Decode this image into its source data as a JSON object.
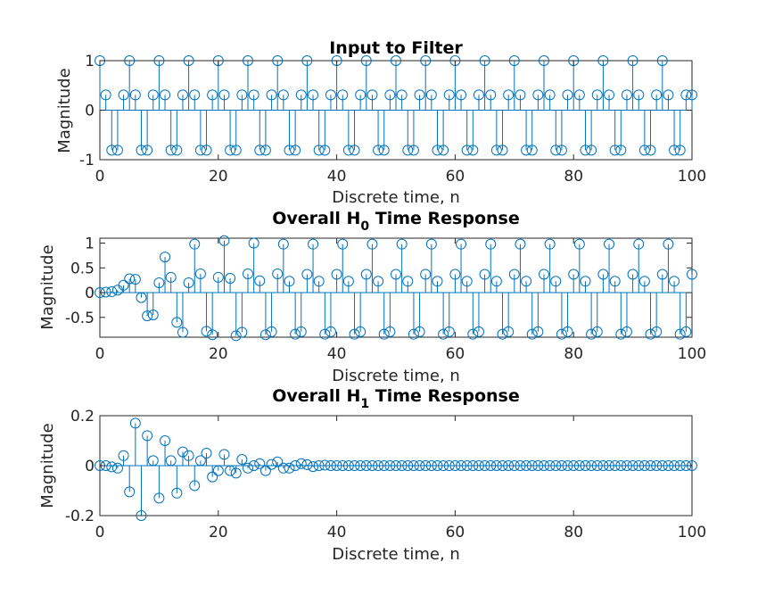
{
  "colors": {
    "stem": "#0072BD",
    "axis": "#262626",
    "background": "#ffffff"
  },
  "chart_data": [
    {
      "type": "stem",
      "title": "Input to Filter",
      "xlabel": "Discrete time, n",
      "ylabel": "Magnitude",
      "xlim": [
        0,
        100
      ],
      "ylim": [
        -1,
        1
      ],
      "xticks": [
        0,
        20,
        40,
        60,
        80,
        100
      ],
      "yticks": [
        -1,
        0,
        1
      ],
      "ytick_labels": [
        "-1",
        "0",
        "1"
      ],
      "grid": false,
      "x": [
        0,
        1,
        2,
        3,
        4,
        5,
        6,
        7,
        8,
        9,
        10,
        11,
        12,
        13,
        14,
        15,
        16,
        17,
        18,
        19,
        20,
        21,
        22,
        23,
        24,
        25,
        26,
        27,
        28,
        29,
        30,
        31,
        32,
        33,
        34,
        35,
        36,
        37,
        38,
        39,
        40,
        41,
        42,
        43,
        44,
        45,
        46,
        47,
        48,
        49,
        50,
        51,
        52,
        53,
        54,
        55,
        56,
        57,
        58,
        59,
        60,
        61,
        62,
        63,
        64,
        65,
        66,
        67,
        68,
        69,
        70,
        71,
        72,
        73,
        74,
        75,
        76,
        77,
        78,
        79,
        80,
        81,
        82,
        83,
        84,
        85,
        86,
        87,
        88,
        89,
        90,
        91,
        92,
        93,
        94,
        95,
        96,
        97,
        98,
        99,
        100
      ],
      "values": [
        1,
        0.309,
        -0.809,
        -0.809,
        0.309,
        1,
        0.309,
        -0.809,
        -0.809,
        0.309,
        1,
        0.309,
        -0.809,
        -0.809,
        0.309,
        1,
        0.309,
        -0.809,
        -0.809,
        0.309,
        1,
        0.309,
        -0.809,
        -0.809,
        0.309,
        1,
        0.309,
        -0.809,
        -0.809,
        0.309,
        1,
        0.309,
        -0.809,
        -0.809,
        0.309,
        1,
        0.309,
        -0.809,
        -0.809,
        0.309,
        1,
        0.309,
        -0.809,
        -0.809,
        0.309,
        1,
        0.309,
        -0.809,
        -0.809,
        0.309,
        1,
        0.309,
        -0.809,
        -0.809,
        0.309,
        1,
        0.309,
        -0.809,
        -0.809,
        0.309,
        1,
        0.309,
        -0.809,
        -0.809,
        0.309,
        1,
        0.309,
        -0.809,
        -0.809,
        0.309,
        1,
        0.309,
        -0.809,
        -0.809,
        0.309,
        1,
        0.309,
        -0.809,
        -0.809,
        0.309,
        1,
        0.309,
        -0.809,
        -0.809,
        0.309,
        1,
        0.309,
        -0.809,
        -0.809,
        0.309,
        1,
        0.309,
        -0.809,
        -0.809,
        0.309,
        1,
        0.309,
        -0.809,
        -0.809,
        0.309,
        0.309
      ]
    },
    {
      "type": "stem",
      "title": "Overall H",
      "title_subscript": "0",
      "title_suffix": " Time Response",
      "xlabel": "Discrete time, n",
      "ylabel": "Magnitude",
      "xlim": [
        0,
        100
      ],
      "ylim": [
        -0.9,
        1.1
      ],
      "xticks": [
        0,
        20,
        40,
        60,
        80,
        100
      ],
      "yticks": [
        -0.5,
        0,
        0.5,
        1
      ],
      "ytick_labels": [
        "-0.5",
        "0",
        "0.5",
        "1"
      ],
      "grid": false,
      "x": [
        0,
        1,
        2,
        3,
        4,
        5,
        6,
        7,
        8,
        9,
        10,
        11,
        12,
        13,
        14,
        15,
        16,
        17,
        18,
        19,
        20,
        21,
        22,
        23,
        24,
        25,
        26,
        27,
        28,
        29,
        30,
        31,
        32,
        33,
        34,
        35,
        36,
        37,
        38,
        39,
        40,
        41,
        42,
        43,
        44,
        45,
        46,
        47,
        48,
        49,
        50,
        51,
        52,
        53,
        54,
        55,
        56,
        57,
        58,
        59,
        60,
        61,
        62,
        63,
        64,
        65,
        66,
        67,
        68,
        69,
        70,
        71,
        72,
        73,
        74,
        75,
        76,
        77,
        78,
        79,
        80,
        81,
        82,
        83,
        84,
        85,
        86,
        87,
        88,
        89,
        90,
        91,
        92,
        93,
        94,
        95,
        96,
        97,
        98,
        99,
        100
      ],
      "values": [
        0.0,
        0.01,
        0.02,
        0.05,
        0.15,
        0.28,
        0.27,
        -0.1,
        -0.47,
        -0.45,
        0.2,
        0.72,
        0.31,
        -0.6,
        -0.8,
        0.2,
        0.98,
        0.38,
        -0.78,
        -0.85,
        0.31,
        1.05,
        0.29,
        -0.87,
        -0.8,
        0.38,
        1.0,
        0.24,
        -0.85,
        -0.79,
        0.38,
        0.98,
        0.23,
        -0.84,
        -0.79,
        0.37,
        0.98,
        0.23,
        -0.84,
        -0.79,
        0.37,
        0.98,
        0.23,
        -0.84,
        -0.79,
        0.37,
        0.98,
        0.23,
        -0.84,
        -0.79,
        0.37,
        0.98,
        0.23,
        -0.84,
        -0.79,
        0.37,
        0.98,
        0.23,
        -0.84,
        -0.79,
        0.37,
        0.98,
        0.23,
        -0.84,
        -0.79,
        0.37,
        0.98,
        0.23,
        -0.84,
        -0.79,
        0.37,
        0.98,
        0.23,
        -0.84,
        -0.79,
        0.37,
        0.98,
        0.23,
        -0.84,
        -0.79,
        0.37,
        0.98,
        0.23,
        -0.84,
        -0.79,
        0.37,
        0.98,
        0.23,
        -0.84,
        -0.79,
        0.37,
        0.98,
        0.23,
        -0.84,
        -0.79,
        0.37,
        0.98,
        0.23,
        -0.84,
        -0.79,
        0.37
      ]
    },
    {
      "type": "stem",
      "title": "Overall H",
      "title_subscript": "1",
      "title_suffix": " Time Response",
      "xlabel": "Discrete time, n",
      "ylabel": "Magnitude",
      "xlim": [
        0,
        100
      ],
      "ylim": [
        -0.2,
        0.2
      ],
      "xticks": [
        0,
        20,
        40,
        60,
        80,
        100
      ],
      "yticks": [
        -0.2,
        0,
        0.2
      ],
      "ytick_labels": [
        "-0.2",
        "0",
        "0.2"
      ],
      "grid": false,
      "x": [
        0,
        1,
        2,
        3,
        4,
        5,
        6,
        7,
        8,
        9,
        10,
        11,
        12,
        13,
        14,
        15,
        16,
        17,
        18,
        19,
        20,
        21,
        22,
        23,
        24,
        25,
        26,
        27,
        28,
        29,
        30,
        31,
        32,
        33,
        34,
        35,
        36,
        37,
        38,
        39,
        40,
        41,
        42,
        43,
        44,
        45,
        46,
        47,
        48,
        49,
        50,
        51,
        52,
        53,
        54,
        55,
        56,
        57,
        58,
        59,
        60,
        61,
        62,
        63,
        64,
        65,
        66,
        67,
        68,
        69,
        70,
        71,
        72,
        73,
        74,
        75,
        76,
        77,
        78,
        79,
        80,
        81,
        82,
        83,
        84,
        85,
        86,
        87,
        88,
        89,
        90,
        91,
        92,
        93,
        94,
        95,
        96,
        97,
        98,
        99,
        100
      ],
      "values": [
        0.0,
        0.0,
        -0.005,
        -0.01,
        0.04,
        -0.105,
        0.17,
        -0.2,
        0.12,
        0.02,
        -0.13,
        0.1,
        0.02,
        -0.11,
        0.055,
        0.04,
        -0.08,
        0.02,
        0.05,
        -0.045,
        -0.02,
        0.045,
        -0.02,
        -0.03,
        0.025,
        -0.01,
        0.0,
        0.008,
        -0.02,
        0.005,
        0.015,
        -0.01,
        -0.01,
        0.0,
        0.008,
        0.004,
        -0.004,
        0.0,
        0.002,
        0.0,
        0.0,
        0.0,
        0.0,
        0.0,
        0.0,
        0.0,
        0.0,
        0.0,
        0.0,
        0.0,
        0.0,
        0.0,
        0.0,
        0.0,
        0.0,
        0.0,
        0.0,
        0.0,
        0.0,
        0.0,
        0.0,
        0.0,
        0.0,
        0.0,
        0.0,
        0.0,
        0.0,
        0.0,
        0.0,
        0.0,
        0.0,
        0.0,
        0.0,
        0.0,
        0.0,
        0.0,
        0.0,
        0.0,
        0.0,
        0.0,
        0.0,
        0.0,
        0.0,
        0.0,
        0.0,
        0.0,
        0.0,
        0.0,
        0.0,
        0.0,
        0.0,
        0.0,
        0.0,
        0.0,
        0.0,
        0.0,
        0.0,
        0.0,
        0.0,
        0.0,
        0.0
      ]
    }
  ]
}
